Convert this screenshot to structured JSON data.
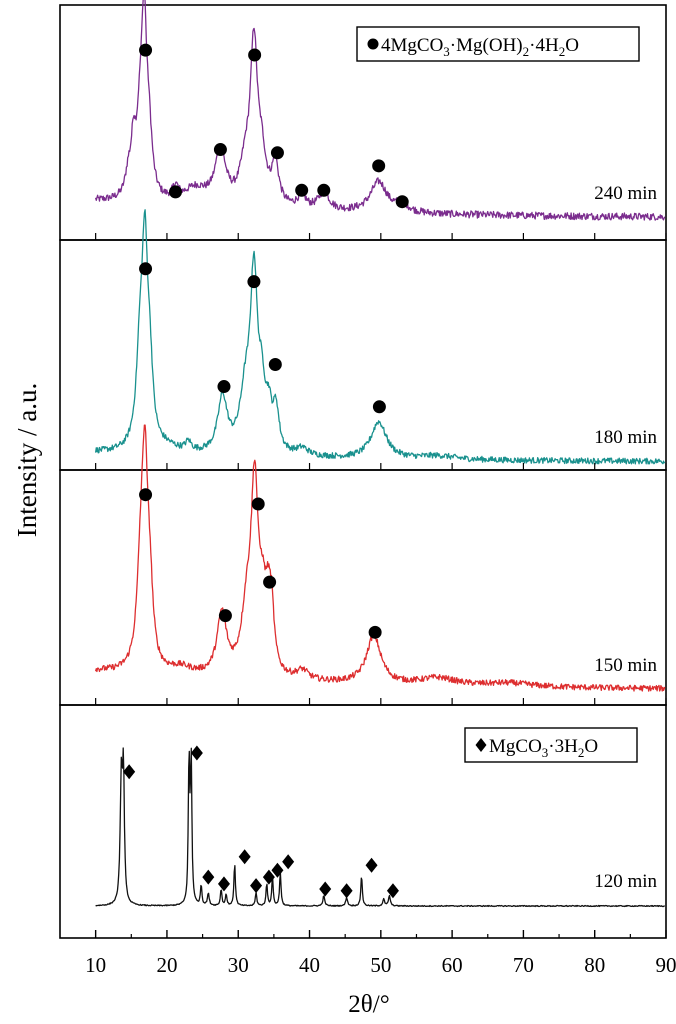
{
  "chart_data": {
    "type": "line",
    "xlabel": "2θ/°",
    "ylabel": "Intensity / a.u.",
    "xlim": [
      5,
      90
    ],
    "xticks": [
      10,
      20,
      30,
      40,
      50,
      60,
      70,
      80,
      90
    ],
    "grid": false,
    "legends": [
      {
        "panel": "240 min",
        "marker": "circle",
        "text_parts": [
          "4MgCO",
          "3",
          "·Mg(OH)",
          "2",
          "·4H",
          "2",
          "O"
        ],
        "placement": "top-right"
      },
      {
        "panel": "120 min",
        "marker": "diamond",
        "text_parts": [
          "MgCO",
          "3",
          "·3H",
          "2",
          "O"
        ],
        "placement": "top-right"
      }
    ],
    "series": [
      {
        "name": "240 min",
        "color": "#7b2d8e",
        "marker": "circle",
        "baseline": 0.1,
        "noise": 0.022,
        "peaks": [
          [
            14.6,
            0.14,
            0.5
          ],
          [
            15.3,
            0.28,
            0.35
          ],
          [
            16.2,
            0.38,
            0.6
          ],
          [
            16.8,
            1.0,
            0.45
          ],
          [
            17.5,
            0.32,
            0.5
          ],
          [
            21.2,
            0.08,
            0.5
          ],
          [
            24,
            0.1,
            2.0
          ],
          [
            27.5,
            0.33,
            0.9
          ],
          [
            31,
            0.22,
            0.9
          ],
          [
            32.2,
            0.95,
            0.6
          ],
          [
            33.3,
            0.25,
            0.7
          ],
          [
            35.2,
            0.25,
            0.6
          ],
          [
            38.9,
            0.08,
            0.7
          ],
          [
            42,
            0.11,
            0.9
          ],
          [
            49.7,
            0.19,
            1.4
          ],
          [
            53,
            0.05,
            1.0
          ]
        ],
        "marked_peaks_x": [
          17.0,
          21.2,
          27.5,
          32.3,
          35.5,
          38.9,
          42.0,
          49.7,
          53.0
        ],
        "marked_peaks_y": [
          1.03,
          0.16,
          0.42,
          1.0,
          0.4,
          0.17,
          0.17,
          0.32,
          0.1
        ]
      },
      {
        "name": "180 min",
        "color": "#1a918e",
        "marker": "circle",
        "baseline": 0.05,
        "noise": 0.016,
        "peaks": [
          [
            16.2,
            0.45,
            0.6
          ],
          [
            16.9,
            1.0,
            0.5
          ],
          [
            17.6,
            0.35,
            0.5
          ],
          [
            20,
            0.03,
            2.0
          ],
          [
            23,
            0.05,
            0.5
          ],
          [
            27.8,
            0.3,
            0.8
          ],
          [
            31,
            0.3,
            0.9
          ],
          [
            32.2,
            0.92,
            0.6
          ],
          [
            33.3,
            0.28,
            0.6
          ],
          [
            34.3,
            0.18,
            0.5
          ],
          [
            35.3,
            0.22,
            0.5
          ],
          [
            39,
            0.04,
            1.0
          ],
          [
            49.7,
            0.2,
            1.3
          ],
          [
            58,
            0.02,
            3.0
          ]
        ],
        "marked_peaks_x": [
          17.0,
          28.0,
          32.2,
          35.2,
          49.8
        ],
        "marked_peaks_y": [
          1.05,
          0.41,
          0.98,
          0.53,
          0.3
        ]
      },
      {
        "name": "150 min",
        "color": "#dd2e2f",
        "marker": "circle",
        "baseline": 0.1,
        "noise": 0.016,
        "peaks": [
          [
            16.3,
            0.45,
            0.6
          ],
          [
            16.9,
            1.0,
            0.5
          ],
          [
            17.6,
            0.35,
            0.5
          ],
          [
            22,
            0.04,
            2.0
          ],
          [
            27.7,
            0.33,
            0.8
          ],
          [
            31.2,
            0.32,
            0.9
          ],
          [
            32.3,
            0.96,
            0.6
          ],
          [
            33.4,
            0.3,
            0.6
          ],
          [
            34.2,
            0.3,
            0.5
          ],
          [
            34.7,
            0.25,
            0.4
          ],
          [
            39,
            0.05,
            1.0
          ],
          [
            49,
            0.26,
            1.2
          ],
          [
            58,
            0.04,
            3.0
          ],
          [
            68,
            0.02,
            4.0
          ]
        ],
        "marked_peaks_x": [
          17.0,
          28.2,
          32.8,
          34.4,
          49.2
        ],
        "marked_peaks_y": [
          1.05,
          0.4,
          1.0,
          0.58,
          0.31
        ]
      },
      {
        "name": "120 min",
        "color": "#111111",
        "marker": "diamond",
        "baseline": 0.0,
        "noise": 0.003,
        "peaks": [
          [
            13.6,
            0.73,
            0.18
          ],
          [
            13.9,
            0.73,
            0.15
          ],
          [
            23.1,
            0.85,
            0.12
          ],
          [
            23.4,
            0.82,
            0.12
          ],
          [
            24.8,
            0.12,
            0.12
          ],
          [
            25.8,
            0.07,
            0.15
          ],
          [
            27.6,
            0.1,
            0.12
          ],
          [
            28.3,
            0.07,
            0.12
          ],
          [
            29.5,
            0.25,
            0.12
          ],
          [
            32.5,
            0.08,
            0.12
          ],
          [
            34,
            0.13,
            0.12
          ],
          [
            34.8,
            0.17,
            0.12
          ],
          [
            35.9,
            0.2,
            0.12
          ],
          [
            42,
            0.06,
            0.15
          ],
          [
            45.2,
            0.05,
            0.15
          ],
          [
            47.3,
            0.18,
            0.12
          ],
          [
            50.4,
            0.04,
            0.15
          ],
          [
            51.2,
            0.06,
            0.15
          ]
        ],
        "marked_peaks_x": [
          14.7,
          24.2,
          25.8,
          28.0,
          30.9,
          32.5,
          34.3,
          35.5,
          37.0,
          42.2,
          45.2,
          48.7,
          51.7
        ],
        "marked_peaks_y": [
          0.79,
          0.9,
          0.17,
          0.13,
          0.29,
          0.12,
          0.17,
          0.21,
          0.26,
          0.1,
          0.09,
          0.24,
          0.09
        ]
      }
    ]
  }
}
